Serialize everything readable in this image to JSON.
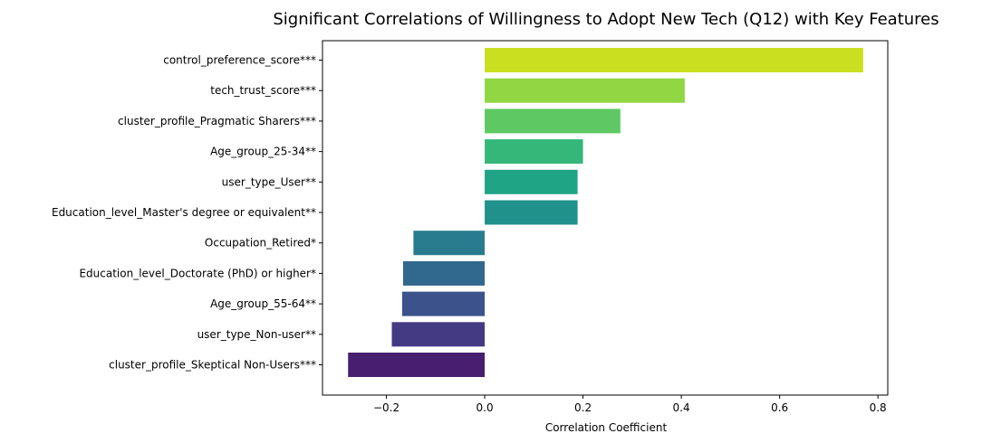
{
  "chart_data": {
    "type": "bar",
    "orientation": "horizontal",
    "title": "Significant Correlations of Willingness to Adopt New Tech (Q12) with Key Features",
    "xlabel": "Correlation Coefficient",
    "ylabel": "",
    "xlim": [
      -0.33,
      0.82
    ],
    "xticks": [
      -0.2,
      0.0,
      0.2,
      0.4,
      0.6,
      0.8
    ],
    "xtick_labels": [
      "−0.2",
      "0.0",
      "0.2",
      "0.4",
      "0.6",
      "0.8"
    ],
    "grid": false,
    "legend": "none",
    "categories": [
      "control_preference_score***",
      "tech_trust_score***",
      "cluster_profile_Pragmatic Sharers***",
      "Age_group_25-34**",
      "user_type_User**",
      "Education_level_Master's degree or equivalent**",
      "Occupation_Retired*",
      "Education_level_Doctorate (PhD) or higher*",
      "Age_group_55-64**",
      "user_type_Non-user**",
      "cluster_profile_Skeptical Non-Users***"
    ],
    "values": [
      0.77,
      0.407,
      0.276,
      0.2,
      0.189,
      0.189,
      -0.145,
      -0.166,
      -0.168,
      -0.189,
      -0.278
    ],
    "colors": [
      "#c8e020",
      "#90d743",
      "#5ec962",
      "#35b779",
      "#20a486",
      "#21918c",
      "#287c8e",
      "#31688e",
      "#3b528b",
      "#443983",
      "#481f70"
    ]
  }
}
